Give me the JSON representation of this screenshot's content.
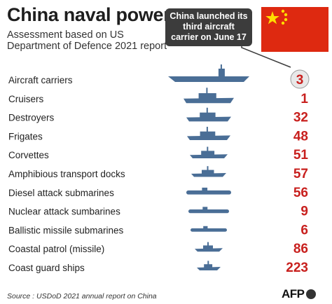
{
  "header": {
    "title": "China naval power",
    "subtitle": "Assessment based on US Department of Defence 2021 report"
  },
  "callout": {
    "text": "China launched its third aircraft carrier on June 17"
  },
  "colors": {
    "value_red": "#c8201e",
    "ship_blue": "#4a6e96",
    "flag_red": "#de2910",
    "flag_star": "#ffde00",
    "callout_bg": "#3c3c3c"
  },
  "icons": [
    "china-flag",
    "ship-silhouette",
    "afp-logo"
  ],
  "chart_data": {
    "type": "table",
    "categories": [
      "Aircraft carriers",
      "Cruisers",
      "Destroyers",
      "Frigates",
      "Corvettes",
      "Amphibious transport docks",
      "Diesel attack submarines",
      "Nuclear attack sumbarines",
      "Ballistic missile submarines",
      "Coastal patrol (missile)",
      "Coast guard ships"
    ],
    "values": [
      3,
      1,
      32,
      48,
      51,
      57,
      56,
      9,
      6,
      86,
      223
    ],
    "highlight_index": 0
  },
  "footer": {
    "source": "Source : USDoD 2021 annual report on China",
    "logo": "AFP"
  }
}
